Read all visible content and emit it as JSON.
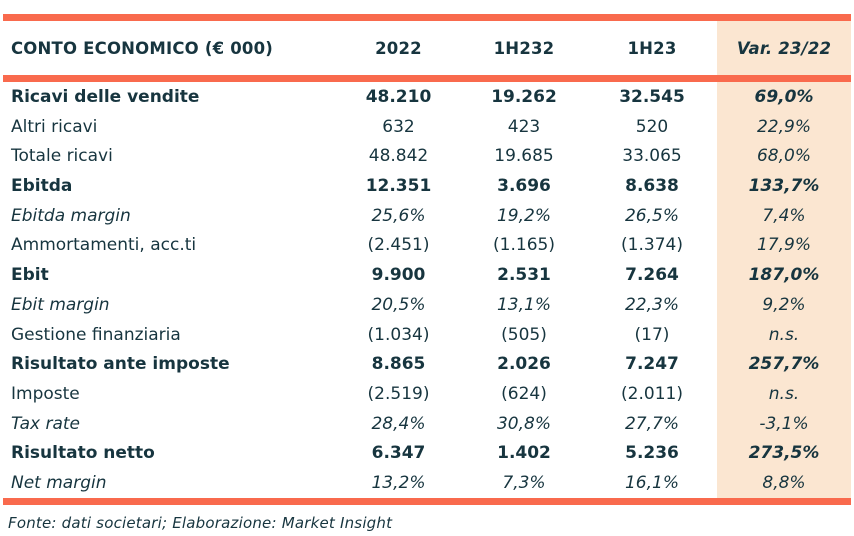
{
  "colors": {
    "accent_orange": "#F96A4D",
    "var_column_bg": "#FBE6D1",
    "text_dark": "#17353F"
  },
  "table": {
    "header": {
      "label": "CONTO ECONOMICO (€ 000)",
      "col_2022": "2022",
      "col_1h22": "1H232",
      "col_1h23": "1H23",
      "col_var": "Var. 23/22"
    },
    "rows": [
      {
        "label": "Ricavi delle vendite",
        "y2022": "48.210",
        "h122": "19.262",
        "h123": "32.545",
        "var": "69,0%"
      },
      {
        "label": "Altri ricavi",
        "y2022": "632",
        "h122": "423",
        "h123": "520",
        "var": "22,9%"
      },
      {
        "label": "Totale ricavi",
        "y2022": "48.842",
        "h122": "19.685",
        "h123": "33.065",
        "var": "68,0%"
      },
      {
        "label": "Ebitda",
        "y2022": "12.351",
        "h122": "3.696",
        "h123": "8.638",
        "var": "133,7%"
      },
      {
        "label": "Ebitda margin",
        "y2022": "25,6%",
        "h122": "19,2%",
        "h123": "26,5%",
        "var": "7,4%"
      },
      {
        "label": "Ammortamenti, acc.ti",
        "y2022": "(2.451)",
        "h122": "(1.165)",
        "h123": "(1.374)",
        "var": "17,9%"
      },
      {
        "label": "Ebit",
        "y2022": "9.900",
        "h122": "2.531",
        "h123": "7.264",
        "var": "187,0%"
      },
      {
        "label": "Ebit margin",
        "y2022": "20,5%",
        "h122": "13,1%",
        "h123": "22,3%",
        "var": "9,2%"
      },
      {
        "label": "Gestione finanziaria",
        "y2022": "(1.034)",
        "h122": "(505)",
        "h123": "(17)",
        "var": "n.s."
      },
      {
        "label": "Risultato ante imposte",
        "y2022": "8.865",
        "h122": "2.026",
        "h123": "7.247",
        "var": "257,7%"
      },
      {
        "label": "Imposte",
        "y2022": "(2.519)",
        "h122": "(624)",
        "h123": "(2.011)",
        "var": "n.s."
      },
      {
        "label": "Tax rate",
        "y2022": "28,4%",
        "h122": "30,8%",
        "h123": "27,7%",
        "var": "-3,1%"
      },
      {
        "label": "Risultato netto",
        "y2022": "6.347",
        "h122": "1.402",
        "h123": "5.236",
        "var": "273,5%"
      },
      {
        "label": "Net margin",
        "y2022": "13,2%",
        "h122": "7,3%",
        "h123": "16,1%",
        "var": "8,8%"
      }
    ]
  },
  "footer": {
    "source": "Fonte: dati societari; Elaborazione: Market Insight"
  }
}
